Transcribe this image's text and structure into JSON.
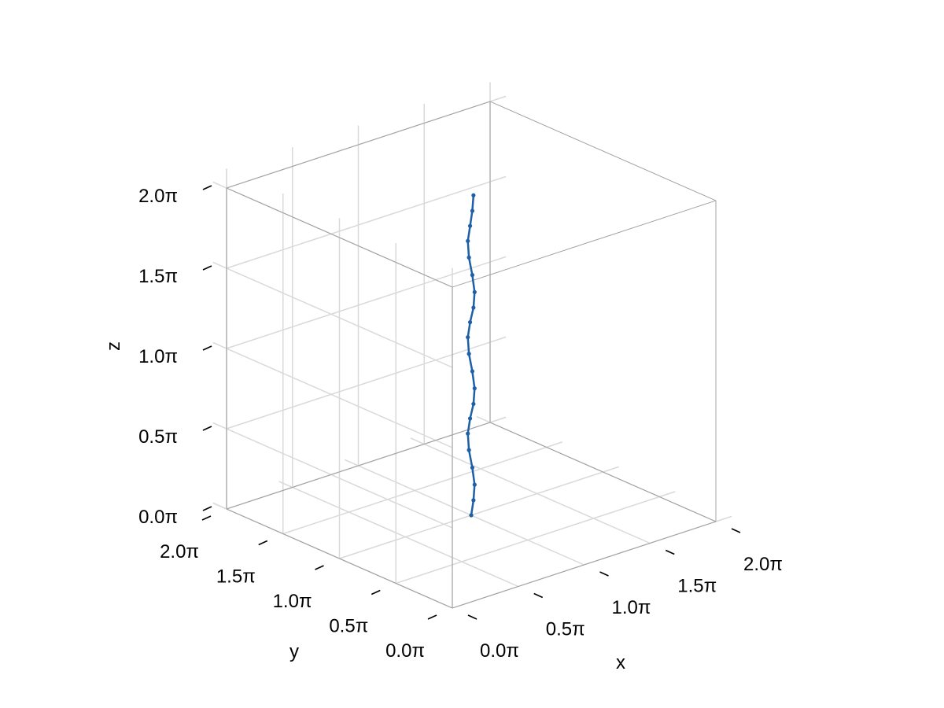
{
  "chart_data": {
    "type": "line",
    "projection": "3d",
    "xlabel": "x",
    "ylabel": "y",
    "zlabel": "z",
    "xlim": [
      0,
      2
    ],
    "ylim": [
      0,
      2
    ],
    "zlim": [
      0,
      2
    ],
    "axis_unit": "π",
    "x_ticks": [
      0,
      0.5,
      1,
      1.5,
      2
    ],
    "y_ticks": [
      0,
      0.5,
      1,
      1.5,
      2
    ],
    "z_ticks": [
      0,
      0.5,
      1,
      1.5,
      2
    ],
    "x_tick_labels": [
      "0.0π",
      "0.5π",
      "1.0π",
      "1.5π",
      "2.0π"
    ],
    "y_tick_labels": [
      "0.0π",
      "0.5π",
      "1.0π",
      "1.5π",
      "2.0π"
    ],
    "z_tick_labels": [
      "0.0π",
      "0.5π",
      "1.0π",
      "1.5π",
      "2.0π"
    ],
    "grid": true,
    "legend": false,
    "series": [
      {
        "color": "#1f5fa6",
        "marker": "dot",
        "points": [
          {
            "x": 1.0,
            "y": 1.0,
            "z": 0.0
          },
          {
            "x": 1.0,
            "y": 0.98,
            "z": 0.1
          },
          {
            "x": 1.0,
            "y": 0.97,
            "z": 0.2
          },
          {
            "x": 1.0,
            "y": 0.99,
            "z": 0.3
          },
          {
            "x": 1.0,
            "y": 1.02,
            "z": 0.4
          },
          {
            "x": 1.0,
            "y": 1.03,
            "z": 0.5
          },
          {
            "x": 1.0,
            "y": 1.01,
            "z": 0.6
          },
          {
            "x": 1.0,
            "y": 0.98,
            "z": 0.7
          },
          {
            "x": 1.0,
            "y": 0.97,
            "z": 0.8
          },
          {
            "x": 1.0,
            "y": 0.99,
            "z": 0.9
          },
          {
            "x": 1.0,
            "y": 1.02,
            "z": 1.0
          },
          {
            "x": 1.0,
            "y": 1.03,
            "z": 1.1
          },
          {
            "x": 1.0,
            "y": 1.01,
            "z": 1.2
          },
          {
            "x": 1.0,
            "y": 0.98,
            "z": 1.3
          },
          {
            "x": 1.0,
            "y": 0.97,
            "z": 1.4
          },
          {
            "x": 1.0,
            "y": 0.99,
            "z": 1.5
          },
          {
            "x": 1.0,
            "y": 1.02,
            "z": 1.6
          },
          {
            "x": 1.0,
            "y": 1.03,
            "z": 1.7
          },
          {
            "x": 1.0,
            "y": 1.01,
            "z": 1.8
          },
          {
            "x": 1.0,
            "y": 0.99,
            "z": 1.9
          },
          {
            "x": 1.0,
            "y": 0.98,
            "z": 2.0
          }
        ]
      }
    ]
  }
}
